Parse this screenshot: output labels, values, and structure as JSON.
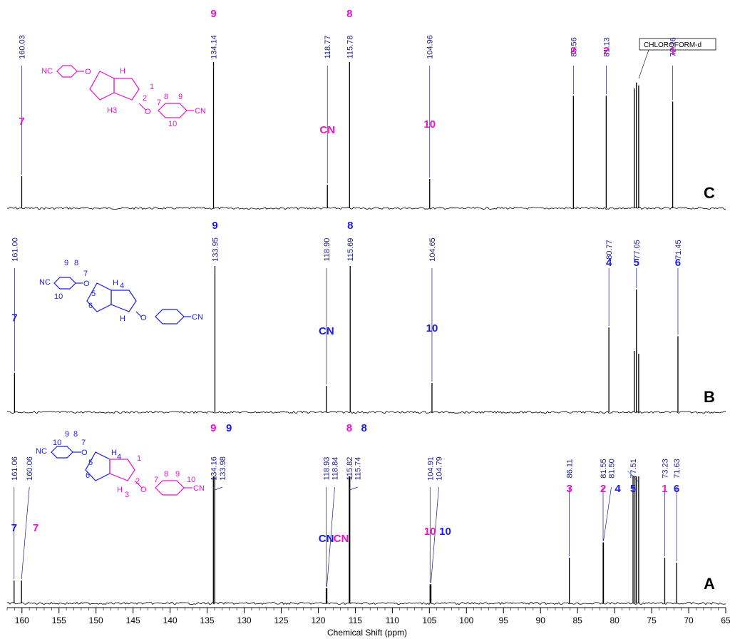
{
  "colors": {
    "pink": "#ee11cc",
    "blue": "#1a1aee",
    "label": "#1a1a8c",
    "trace": "#000000"
  },
  "chart_data": [
    {
      "type": "line",
      "panel": "C",
      "x_unit": "ppm",
      "peaks": [
        {
          "ppm": 160.03,
          "height": 0.22,
          "label": "160.03"
        },
        {
          "ppm": 134.14,
          "height": 1.0,
          "label": "134.14"
        },
        {
          "ppm": 118.77,
          "height": 0.16,
          "label": "118.77"
        },
        {
          "ppm": 115.78,
          "height": 1.0,
          "label": "115.78"
        },
        {
          "ppm": 104.96,
          "height": 0.2,
          "label": "104.96"
        },
        {
          "ppm": 85.56,
          "height": 0.77,
          "label": "85.56"
        },
        {
          "ppm": 81.13,
          "height": 0.77,
          "label": "81.13"
        },
        {
          "ppm": 77.05,
          "height": 0.86,
          "label": ""
        },
        {
          "ppm": 76.75,
          "height": 0.84,
          "label": ""
        },
        {
          "ppm": 77.35,
          "height": 0.82,
          "label": ""
        },
        {
          "ppm": 72.16,
          "height": 0.73,
          "label": "72.16"
        }
      ],
      "assignments": [
        {
          "text": "7",
          "ppm": 160.03,
          "color": "pink"
        },
        {
          "text": "9",
          "ppm": 134.14,
          "color": "pink"
        },
        {
          "text": "CN",
          "ppm": 118.77,
          "color": "pink"
        },
        {
          "text": "8",
          "ppm": 115.78,
          "color": "pink"
        },
        {
          "text": "10",
          "ppm": 104.96,
          "color": "pink"
        },
        {
          "text": "3",
          "ppm": 85.56,
          "color": "pink"
        },
        {
          "text": "2",
          "ppm": 81.13,
          "color": "pink"
        },
        {
          "text": "1",
          "ppm": 72.16,
          "color": "pink"
        }
      ],
      "solvent_label": "CHLOROFORM-d"
    },
    {
      "type": "line",
      "panel": "B",
      "x_unit": "ppm",
      "peaks": [
        {
          "ppm": 161.0,
          "height": 0.27,
          "label": "161.00"
        },
        {
          "ppm": 133.95,
          "height": 1.0,
          "label": "133.95"
        },
        {
          "ppm": 118.9,
          "height": 0.18,
          "label": "118.90"
        },
        {
          "ppm": 115.69,
          "height": 1.0,
          "label": "115.69"
        },
        {
          "ppm": 104.65,
          "height": 0.2,
          "label": "104.65"
        },
        {
          "ppm": 80.77,
          "height": 0.58,
          "label": "80.77"
        },
        {
          "ppm": 77.05,
          "height": 0.84,
          "label": "77.05"
        },
        {
          "ppm": 77.35,
          "height": 0.42,
          "label": ""
        },
        {
          "ppm": 76.75,
          "height": 0.4,
          "label": ""
        },
        {
          "ppm": 71.45,
          "height": 0.52,
          "label": "71.45"
        }
      ],
      "assignments": [
        {
          "text": "7",
          "ppm": 161.0,
          "color": "blue"
        },
        {
          "text": "9",
          "ppm": 133.95,
          "color": "blue"
        },
        {
          "text": "CN",
          "ppm": 118.9,
          "color": "blue"
        },
        {
          "text": "8",
          "ppm": 115.69,
          "color": "blue"
        },
        {
          "text": "10",
          "ppm": 104.65,
          "color": "blue"
        },
        {
          "text": "4",
          "ppm": 80.77,
          "color": "blue"
        },
        {
          "text": "5",
          "ppm": 77.05,
          "color": "blue"
        },
        {
          "text": "6",
          "ppm": 71.45,
          "color": "blue"
        }
      ]
    },
    {
      "type": "line",
      "panel": "A",
      "x_unit": "ppm",
      "x_ticks": [
        160,
        155,
        150,
        145,
        140,
        135,
        130,
        125,
        120,
        115,
        110,
        105,
        100,
        95,
        90,
        85,
        80,
        75,
        70,
        65
      ],
      "x_range": [
        162,
        65
      ],
      "xlabel": "Chemical Shift (ppm)",
      "peaks": [
        {
          "ppm": 161.06,
          "height": 0.18,
          "label": "161.06"
        },
        {
          "ppm": 160.06,
          "height": 0.18,
          "label": "160.06"
        },
        {
          "ppm": 134.16,
          "height": 1.0,
          "label": "134.16"
        },
        {
          "ppm": 133.98,
          "height": 1.0,
          "label": "133.98"
        },
        {
          "ppm": 118.93,
          "height": 0.12,
          "label": "118.93"
        },
        {
          "ppm": 118.84,
          "height": 0.12,
          "label": "118.84"
        },
        {
          "ppm": 115.82,
          "height": 1.0,
          "label": "115.82"
        },
        {
          "ppm": 115.74,
          "height": 1.0,
          "label": "115.74"
        },
        {
          "ppm": 104.91,
          "height": 0.15,
          "label": "104.91"
        },
        {
          "ppm": 104.79,
          "height": 0.15,
          "label": "104.79"
        },
        {
          "ppm": 86.11,
          "height": 0.36,
          "label": "86.11"
        },
        {
          "ppm": 81.55,
          "height": 0.48,
          "label": "81.55"
        },
        {
          "ppm": 81.5,
          "height": 0.48,
          "label": "81.50"
        },
        {
          "ppm": 77.51,
          "height": 1.0,
          "label": "77.51"
        },
        {
          "ppm": 77.25,
          "height": 1.0,
          "label": ""
        },
        {
          "ppm": 77.05,
          "height": 1.0,
          "label": ""
        },
        {
          "ppm": 76.75,
          "height": 1.0,
          "label": ""
        },
        {
          "ppm": 73.23,
          "height": 0.36,
          "label": "73.23"
        },
        {
          "ppm": 71.63,
          "height": 0.32,
          "label": "71.63"
        }
      ],
      "assignments": [
        {
          "text": "7",
          "ppm": 161.06,
          "color": "blue"
        },
        {
          "text": "7",
          "ppm": 160.06,
          "color": "pink"
        },
        {
          "text": "9",
          "ppm": 134.16,
          "color": "pink"
        },
        {
          "text": "9",
          "ppm": 133.98,
          "color": "blue"
        },
        {
          "text": "CN",
          "ppm": 118.93,
          "color": "blue"
        },
        {
          "text": "CN",
          "ppm": 118.84,
          "color": "pink"
        },
        {
          "text": "8",
          "ppm": 115.82,
          "color": "pink"
        },
        {
          "text": "8",
          "ppm": 115.74,
          "color": "blue"
        },
        {
          "text": "10",
          "ppm": 104.91,
          "color": "pink"
        },
        {
          "text": "10",
          "ppm": 104.79,
          "color": "blue"
        },
        {
          "text": "3",
          "ppm": 86.11,
          "color": "pink"
        },
        {
          "text": "2",
          "ppm": 81.55,
          "color": "pink"
        },
        {
          "text": "4",
          "ppm": 81.5,
          "color": "blue"
        },
        {
          "text": "5",
          "ppm": 77.51,
          "color": "blue"
        },
        {
          "text": "1",
          "ppm": 73.23,
          "color": "pink"
        },
        {
          "text": "6",
          "ppm": 71.63,
          "color": "blue"
        }
      ]
    }
  ],
  "panel_letters": {
    "C": "C",
    "B": "B",
    "A": "A"
  },
  "structures": {
    "nc_label": "NC",
    "cn_label": "CN",
    "h_label": "H",
    "h3_label": "H3",
    "o_label": "O",
    "C": {
      "nums": [
        "1",
        "2",
        "3",
        "7",
        "8",
        "9",
        "10"
      ]
    },
    "B": {
      "nums": [
        "9",
        "8",
        "7",
        "10",
        "5",
        "4",
        "6"
      ]
    },
    "A": {
      "nums": [
        "9",
        "8",
        "10",
        "7",
        "5",
        "4",
        "6",
        "1",
        "2",
        "3",
        "7",
        "8",
        "9",
        "10"
      ]
    }
  }
}
